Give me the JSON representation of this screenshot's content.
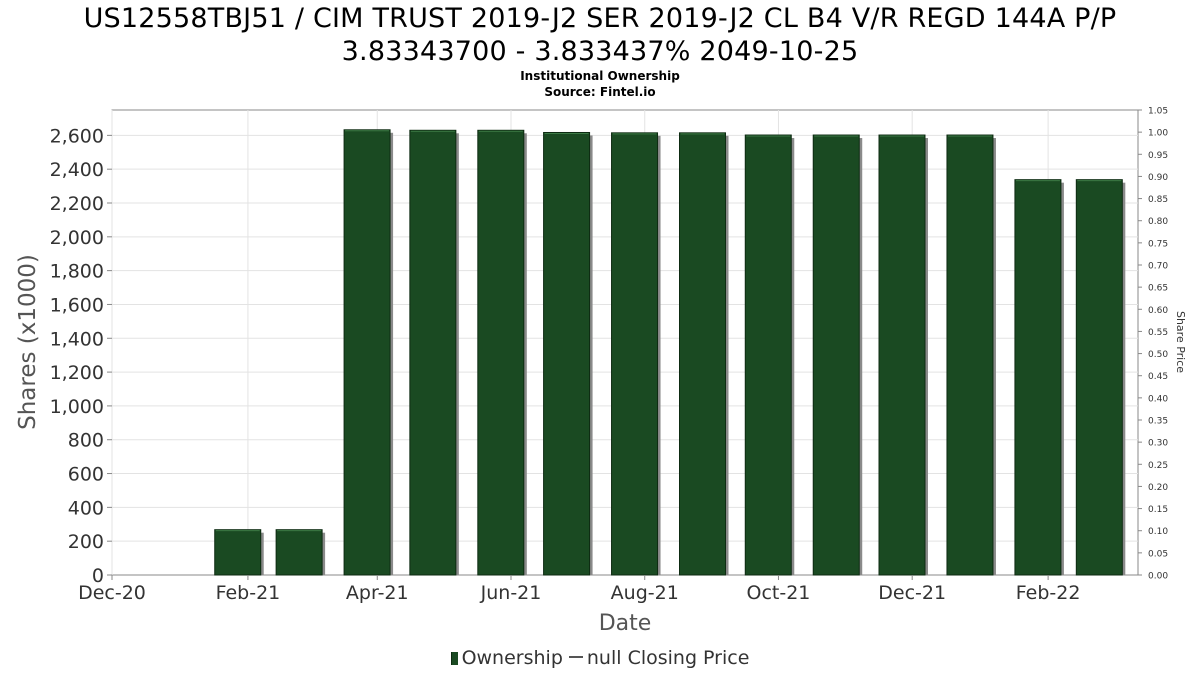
{
  "title_lines": [
    "US12558TBJ51 / CIM TRUST 2019-J2 SER 2019-J2 CL B4 V/R REGD 144A P/P",
    "3.83343700 - 3.833437% 2049-10-25"
  ],
  "subtitle_lines": [
    "Institutional Ownership",
    "Source: Fintel.io"
  ],
  "legend": {
    "ownership_label": "Ownership",
    "price_label": "null Closing Price"
  },
  "colors": {
    "bar": "#1a4a22",
    "bar_shadow": "#8a8a8a",
    "grid": "#e3e3e3",
    "axis": "#888888"
  },
  "chart_data": {
    "type": "bar",
    "title": "US12558TBJ51 / CIM TRUST 2019-J2 SER 2019-J2 CL B4 V/R REGD 144A P/P 3.83343700 - 3.833437% 2049-10-25",
    "xlabel": "Date",
    "ylabel": "Shares (x1000)",
    "y2label": "Share Price",
    "categories": [
      "2021-01-31",
      "2021-02-28",
      "2021-03-31",
      "2021-04-30",
      "2021-05-31",
      "2021-06-30",
      "2021-07-31",
      "2021-08-31",
      "2021-09-30",
      "2021-10-31",
      "2021-11-30",
      "2021-12-31",
      "2022-01-31",
      "2022-02-28"
    ],
    "x_range": [
      "2020-12-01",
      "2022-03-14"
    ],
    "x_ticks": [
      "Dec-20",
      "Feb-21",
      "Apr-21",
      "Jun-21",
      "Aug-21",
      "Oct-21",
      "Dec-21",
      "Feb-22"
    ],
    "x_tick_dates": [
      "2020-12-01",
      "2021-02-01",
      "2021-04-01",
      "2021-06-01",
      "2021-08-01",
      "2021-10-01",
      "2021-12-01",
      "2022-02-01"
    ],
    "series": [
      {
        "name": "Ownership",
        "values": [
          268,
          268,
          2633,
          2630,
          2630,
          2617,
          2615,
          2615,
          2602,
          2602,
          2602,
          2602,
          2338,
          2338
        ]
      }
    ],
    "ylim": [
      0,
      2750
    ],
    "y_ticks": [
      "0",
      "200",
      "400",
      "600",
      "800",
      "1,000",
      "1,200",
      "1,400",
      "1,600",
      "1,800",
      "2,000",
      "2,200",
      "2,400",
      "2,600"
    ],
    "y2lim": [
      0,
      1.05
    ],
    "y2_ticks": [
      "0.00",
      "0.05",
      "0.10",
      "0.15",
      "0.20",
      "0.25",
      "0.30",
      "0.35",
      "0.40",
      "0.45",
      "0.50",
      "0.55",
      "0.60",
      "0.65",
      "0.70",
      "0.75",
      "0.80",
      "0.85",
      "0.90",
      "0.95",
      "1.00",
      "1.05"
    ],
    "grid": true,
    "legend_position": "bottom"
  }
}
